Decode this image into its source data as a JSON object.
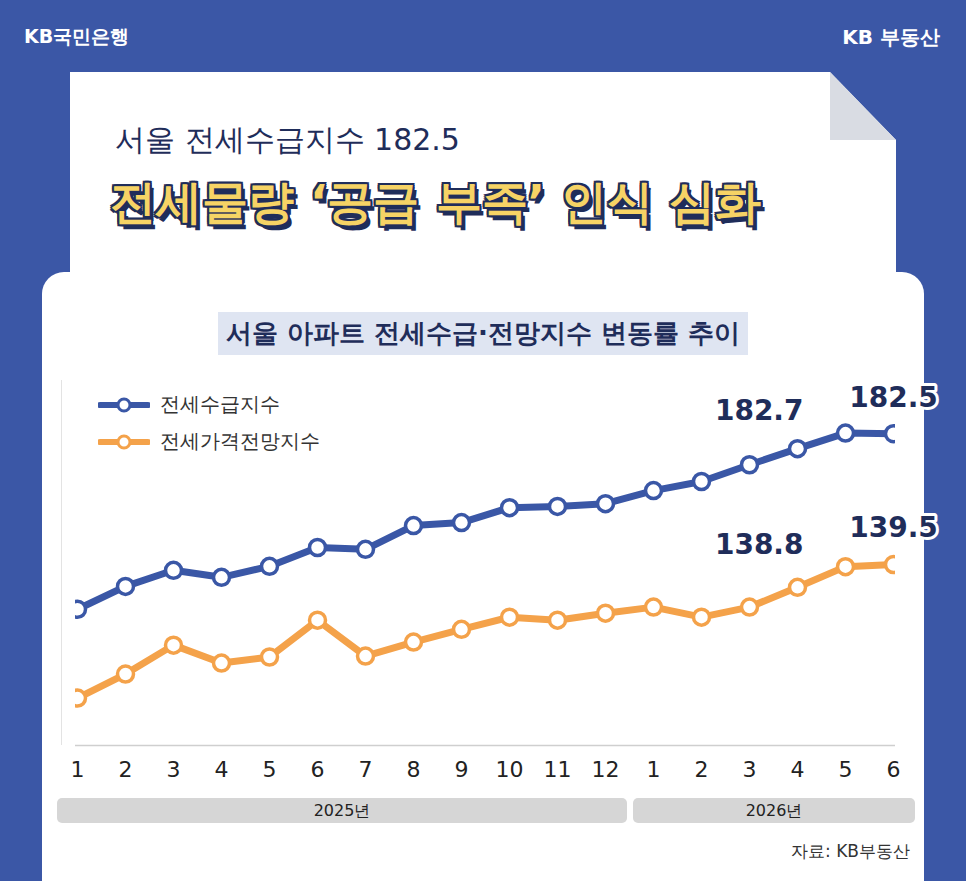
{
  "header": {
    "brand_left": "KB국민은행",
    "brand_right": "KB 부동산",
    "subtitle": "서울 전세수급지수 182.5",
    "headline": "전세물량 ‘공급 부족’ 인식 심화"
  },
  "chart_data": {
    "type": "line",
    "title": "서울 아파트 전세수급·전망지수 변동률 추이",
    "source": "자료: KB부동산",
    "categories": [
      "1",
      "2",
      "3",
      "4",
      "5",
      "6",
      "7",
      "8",
      "9",
      "10",
      "11",
      "12",
      "1",
      "2",
      "3",
      "4",
      "5",
      "6"
    ],
    "group_labels": [
      "2025년",
      "2026년"
    ],
    "group_sizes": [
      12,
      6
    ],
    "series": [
      {
        "name": "전세수급지수",
        "color": "#3a57a6",
        "marker": "circle",
        "values": [
          124.8,
          132.3,
          137.6,
          135.3,
          138.9,
          145.1,
          144.5,
          152.3,
          153.3,
          158.2,
          158.6,
          159.5,
          163.8,
          166.8,
          172.3,
          177.6,
          182.7,
          182.5
        ],
        "value_labels": [
          null,
          null,
          null,
          null,
          null,
          null,
          null,
          null,
          null,
          null,
          null,
          null,
          null,
          null,
          null,
          null,
          "182.7",
          "182.5"
        ]
      },
      {
        "name": "전세가격전망지수",
        "color": "#f4a24a",
        "marker": "circle",
        "values": [
          95.6,
          103.5,
          113.0,
          107.1,
          109.1,
          121.2,
          109.4,
          114.0,
          118.2,
          122.2,
          121.2,
          123.5,
          125.5,
          122.2,
          125.5,
          132.0,
          138.8,
          139.5
        ],
        "value_labels": [
          null,
          null,
          null,
          null,
          null,
          null,
          null,
          null,
          null,
          null,
          null,
          null,
          null,
          null,
          null,
          null,
          "138.8",
          "139.5"
        ]
      }
    ],
    "ylim": [
      80,
      200
    ],
    "tick_labels": "x",
    "legend": "top-left"
  }
}
